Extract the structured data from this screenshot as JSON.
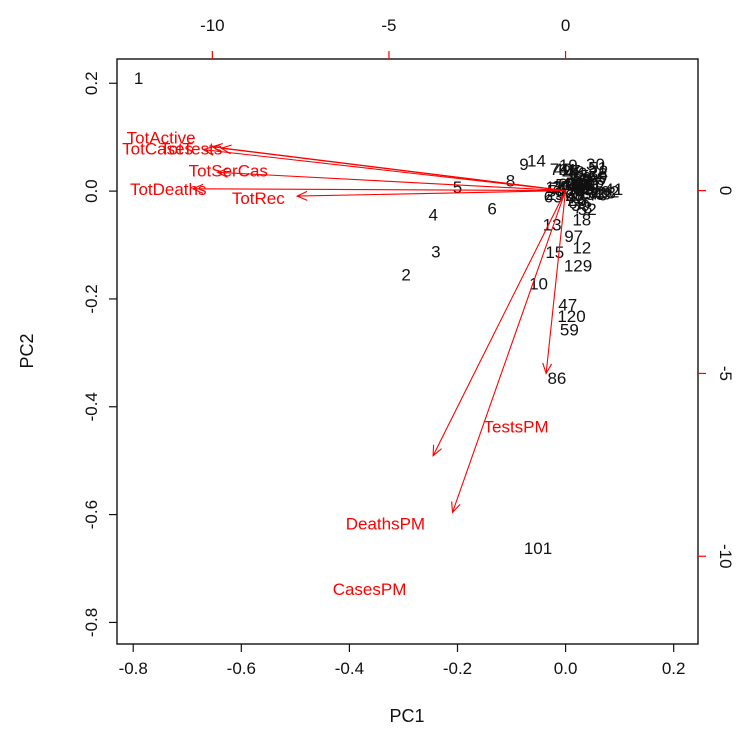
{
  "chart_data": {
    "type": "scatter",
    "title": "",
    "xlabel": "PC1",
    "ylabel": "PC2",
    "xlim": [
      -0.83,
      0.245
    ],
    "ylim": [
      -0.84,
      0.245
    ],
    "bottom_ticks": [
      -0.8,
      -0.6,
      -0.4,
      -0.2,
      0.0,
      0.2
    ],
    "bottom_tick_labels": [
      "-0.8",
      "-0.6",
      "-0.4",
      "-0.2",
      "0.0",
      "0.2"
    ],
    "left_ticks": [
      -0.8,
      -0.6,
      -0.4,
      -0.2,
      0.0,
      0.2
    ],
    "left_tick_labels": [
      "-0.8",
      "-0.6",
      "-0.4",
      "-0.2",
      "0.0",
      "0.2"
    ],
    "loadings_scale": {
      "xlim": [
        -12.7,
        3.75
      ],
      "ylim": [
        -12.4,
        3.6
      ]
    },
    "top_ticks": [
      -10,
      -5,
      0
    ],
    "top_tick_labels": [
      "-10",
      "-5",
      "0"
    ],
    "right_ticks": [
      0,
      -5,
      -10
    ],
    "right_tick_labels": [
      "0",
      "-5",
      "-10"
    ],
    "loading_color": "#ff0000",
    "point_color": "#111111",
    "points": [
      {
        "label": "1",
        "x": -0.79,
        "y": 0.21
      },
      {
        "label": "2",
        "x": -0.295,
        "y": -0.155
      },
      {
        "label": "3",
        "x": -0.24,
        "y": -0.112
      },
      {
        "label": "4",
        "x": -0.245,
        "y": -0.043
      },
      {
        "label": "5",
        "x": -0.2,
        "y": 0.008
      },
      {
        "label": "6",
        "x": -0.136,
        "y": -0.032
      },
      {
        "label": "8",
        "x": -0.102,
        "y": 0.02
      },
      {
        "label": "10",
        "x": -0.05,
        "y": -0.171
      },
      {
        "label": "14",
        "x": -0.054,
        "y": 0.057
      },
      {
        "label": "9",
        "x": -0.077,
        "y": 0.05
      },
      {
        "label": "15",
        "x": -0.02,
        "y": -0.113
      },
      {
        "label": "47",
        "x": 0.004,
        "y": -0.21
      },
      {
        "label": "120",
        "x": 0.011,
        "y": -0.232
      },
      {
        "label": "59",
        "x": 0.007,
        "y": -0.257
      },
      {
        "label": "86",
        "x": -0.016,
        "y": -0.347
      },
      {
        "label": "101",
        "x": -0.051,
        "y": -0.662
      },
      {
        "label": "129",
        "x": 0.023,
        "y": -0.138
      },
      {
        "label": "12",
        "x": 0.03,
        "y": -0.105
      },
      {
        "label": "97",
        "x": 0.015,
        "y": -0.083
      },
      {
        "label": "13",
        "x": -0.025,
        "y": -0.062
      },
      {
        "label": "18",
        "x": 0.03,
        "y": -0.053
      },
      {
        "label": "19",
        "x": 0.005,
        "y": 0.048
      },
      {
        "label": "17",
        "x": -0.02,
        "y": 0.008
      }
    ],
    "cluster": {
      "x": 0.03,
      "y": 0.01
    },
    "loadings": [
      {
        "name": "TotActive",
        "x": -10.0,
        "y": 1.2,
        "label_x": -11.45,
        "label_y": 1.45
      },
      {
        "name": "TotCases",
        "x": -10.25,
        "y": 1.12,
        "label_x": -11.55,
        "label_y": 1.15
      },
      {
        "name": "TotTests",
        "x": -9.75,
        "y": 1.16,
        "label_x": -10.6,
        "label_y": 1.15
      },
      {
        "name": "TotSerCas",
        "x": -9.85,
        "y": 0.5,
        "label_x": -9.55,
        "label_y": 0.55
      },
      {
        "name": "TotDeaths",
        "x": -10.55,
        "y": 0.05,
        "label_x": -11.25,
        "label_y": 0.05
      },
      {
        "name": "TotRec",
        "x": -7.6,
        "y": -0.15,
        "label_x": -8.7,
        "label_y": -0.2
      },
      {
        "name": "TestsPM",
        "x": -0.55,
        "y": -5.0,
        "label_x": -1.4,
        "label_y": -6.45
      },
      {
        "name": "DeathsPM",
        "x": -3.2,
        "y": -8.8,
        "label_x": -5.1,
        "label_y": -9.1
      },
      {
        "name": "CasesPM",
        "x": -3.75,
        "y": -7.25,
        "label_x": -5.55,
        "label_y": -10.9
      }
    ]
  }
}
